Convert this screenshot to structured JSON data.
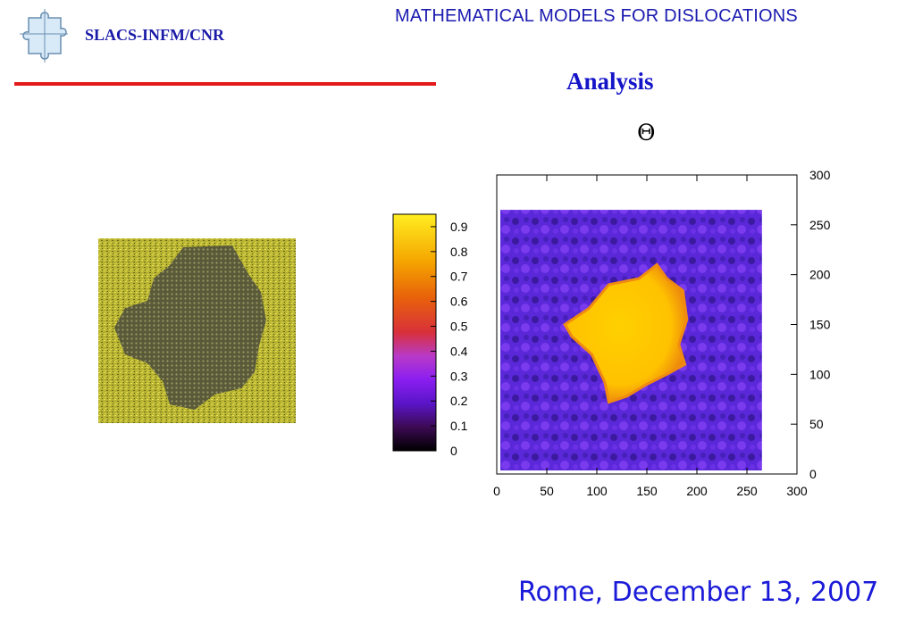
{
  "header": {
    "org": "SLACS-INFM/CNR",
    "course_title": "MATHEMATICAL MODELS FOR DISLOCATIONS",
    "logo_icon": "puzzle-piece-icon"
  },
  "slide": {
    "section_title": "Analysis",
    "plot_symbol": "Θ",
    "footer_date": "Rome, December 13, 2007"
  },
  "colors": {
    "accent_line": "#e41a1a",
    "title_blue": "#1414c8"
  },
  "chart_data": {
    "type": "heatmap",
    "title": "Θ",
    "xlabel": "",
    "ylabel": "",
    "xlim": [
      0,
      300
    ],
    "ylim": [
      0,
      300
    ],
    "data_extent": [
      0,
      265
    ],
    "x_ticks": [
      "0",
      "50",
      "100",
      "150",
      "200",
      "250",
      "300"
    ],
    "y_ticks": [
      "0",
      "50",
      "100",
      "150",
      "200",
      "250",
      "300"
    ],
    "grid": false,
    "background_value": 0.22,
    "region": {
      "value": 0.9,
      "outline": [
        [
          68,
          150
        ],
        [
          92,
          166
        ],
        [
          112,
          190
        ],
        [
          142,
          196
        ],
        [
          160,
          210
        ],
        [
          170,
          196
        ],
        [
          186,
          184
        ],
        [
          190,
          155
        ],
        [
          182,
          130
        ],
        [
          188,
          110
        ],
        [
          170,
          100
        ],
        [
          150,
          90
        ],
        [
          130,
          78
        ],
        [
          112,
          72
        ],
        [
          108,
          92
        ],
        [
          95,
          120
        ],
        [
          75,
          138
        ],
        [
          68,
          150
        ]
      ]
    },
    "colorbar": {
      "ticks": [
        "0",
        "0.1",
        "0.2",
        "0.3",
        "0.4",
        "0.5",
        "0.6",
        "0.7",
        "0.8",
        "0.9"
      ],
      "range": [
        0,
        0.95
      ],
      "position": "left"
    }
  }
}
